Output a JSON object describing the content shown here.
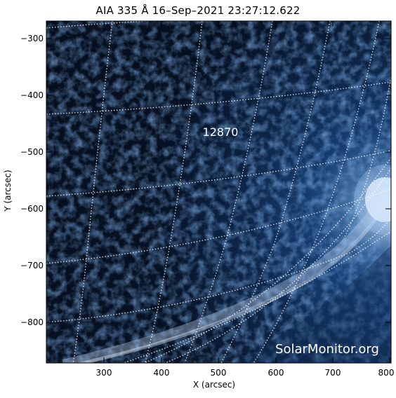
{
  "title": "AIA 335 Å 16–Sep–2021 23:27:12.622",
  "x_axis": {
    "label": "X (arcsec)",
    "range": [
      205,
      800
    ],
    "ticks": [
      "300",
      "400",
      "500",
      "600",
      "700",
      "800"
    ]
  },
  "y_axis": {
    "label": "Y (arcsec)",
    "range": [
      -870,
      -272
    ],
    "ticks": [
      "−300",
      "−400",
      "−500",
      "−600",
      "−700",
      "−800"
    ]
  },
  "region_label": "12870",
  "watermark": "SolarMonitor.org",
  "colors": {
    "background": "#000000",
    "plasma_dark": "#0a1a33",
    "plasma_mid": "#1f4f8a",
    "plasma_bright": "#8eb8e8",
    "limb_glow": "#eaf4ff",
    "grid": "#ffffff"
  }
}
